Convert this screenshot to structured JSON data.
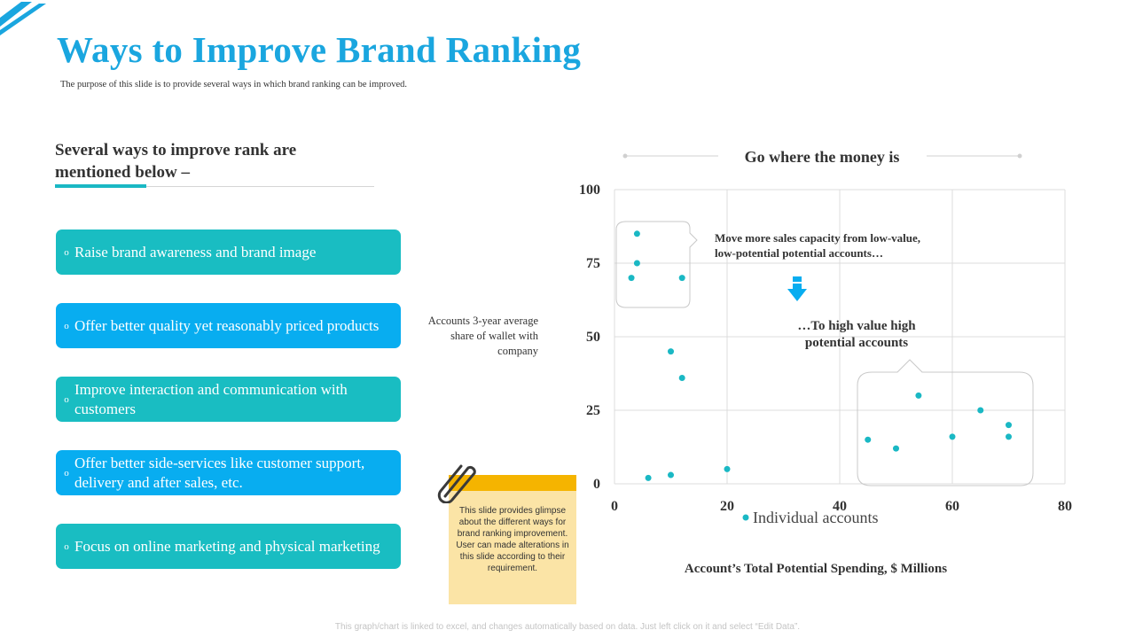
{
  "title": "Ways to Improve Brand Ranking",
  "subtitle": "The purpose of this slide is to provide several ways in which brand ranking can be improved.",
  "left_heading": "Several ways to improve rank are mentioned  below –",
  "items": [
    {
      "bullet": "o",
      "text": "Raise brand awareness and brand image",
      "color": "#19bdc2"
    },
    {
      "bullet": "o",
      "text": "Offer better quality yet reasonably priced products",
      "color": "#08adf0"
    },
    {
      "bullet": "o",
      "text": "Improve interaction and communication with customers",
      "color": "#19bdc2"
    },
    {
      "bullet": "o",
      "text": "Offer better side-services like customer support, delivery and after sales, etc.",
      "color": "#08adf0"
    },
    {
      "bullet": "o",
      "text": "Focus on online marketing and physical marketing",
      "color": "#19bdc2"
    }
  ],
  "note": {
    "text": "This slide provides glimpse about the different ways for brand ranking improvement. User can made alterations in this slide according to their requirement."
  },
  "footer": "This graph/chart is linked to excel, and changes automatically based on data. Just left click on it and select “Edit Data”.",
  "colors": {
    "accent": "#1aa6df",
    "teal": "#19bdc2",
    "blue": "#08adf0",
    "point": "#1ab8c4",
    "note": "#fbe4a6",
    "note_top": "#f5b400"
  },
  "chart_data": {
    "type": "scatter",
    "title": "Go where the money is",
    "xlabel": "Account’s Total Potential Spending, $ Millions",
    "ylabel": "Accounts 3-year average share of wallet with company",
    "xlim": [
      0,
      80
    ],
    "ylim": [
      0,
      100
    ],
    "xticks": [
      "0",
      "20",
      "40",
      "60",
      "80"
    ],
    "yticks": [
      "0",
      "25",
      "50",
      "75",
      "100"
    ],
    "grid": true,
    "legend": "bottom-center",
    "series": [
      {
        "name": "Individual accounts",
        "color": "#1ab8c4",
        "x": [
          4,
          4,
          3,
          12,
          10,
          12,
          6,
          10,
          20,
          45,
          50,
          54,
          60,
          65,
          70,
          70
        ],
        "y": [
          85,
          75,
          70,
          70,
          45,
          36,
          2,
          3,
          5,
          15,
          12,
          30,
          16,
          25,
          20,
          16
        ]
      }
    ],
    "annotations": [
      {
        "text": "Move more sales capacity from low-value,",
        "text2": "low-potential potential accounts…"
      },
      {
        "text": "…To high value high",
        "text2": "potential accounts"
      }
    ]
  }
}
